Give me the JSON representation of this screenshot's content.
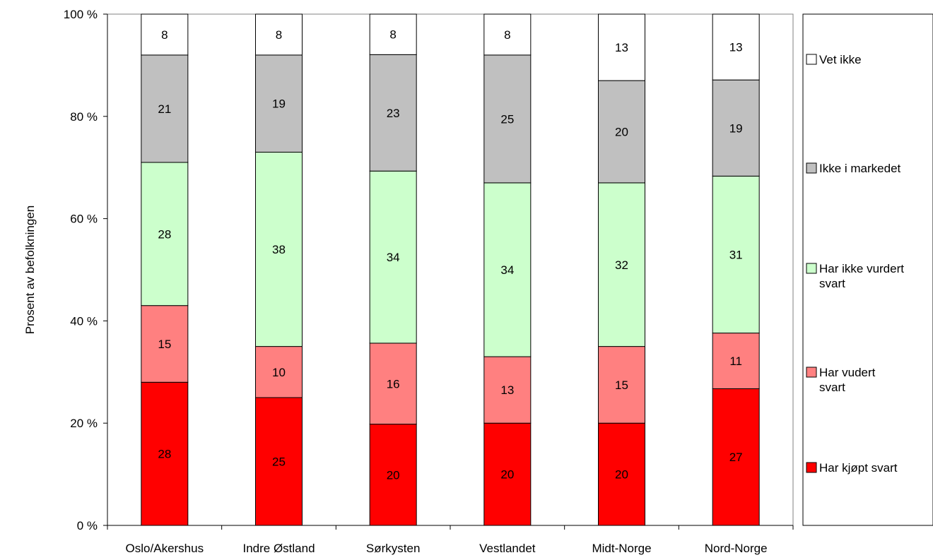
{
  "chart_data": {
    "type": "bar",
    "stacked": true,
    "percent_stacked": true,
    "categories": [
      "Oslo/Akershus",
      "Indre Østland",
      "Sørkysten",
      "Vestlandet",
      "Midt-Norge",
      "Nord-Norge"
    ],
    "series": [
      {
        "name": "Har kjøpt svart",
        "color": "#FF0000",
        "values": [
          28,
          25,
          20,
          20,
          20,
          27
        ]
      },
      {
        "name": "Har vudert svart",
        "color": "#FF8080",
        "values": [
          15,
          10,
          16,
          13,
          15,
          11
        ]
      },
      {
        "name": "Har ikke vurdert svart",
        "color": "#CCFFCC",
        "values": [
          28,
          38,
          34,
          34,
          32,
          31
        ]
      },
      {
        "name": "Ikke i markedet",
        "color": "#C0C0C0",
        "values": [
          21,
          19,
          23,
          25,
          20,
          19
        ]
      },
      {
        "name": "Vet ikke",
        "color": "#FFFFFF",
        "values": [
          8,
          8,
          8,
          8,
          13,
          13
        ]
      }
    ],
    "ylabel": "Prosent av befolkningen",
    "ylim": [
      0,
      100
    ],
    "yticks": [
      0,
      20,
      40,
      60,
      80,
      100
    ],
    "ytick_labels": [
      "0 %",
      "20 %",
      "40 %",
      "60 %",
      "80 %",
      "100 %"
    ],
    "grid": false,
    "legend_position": "right"
  }
}
